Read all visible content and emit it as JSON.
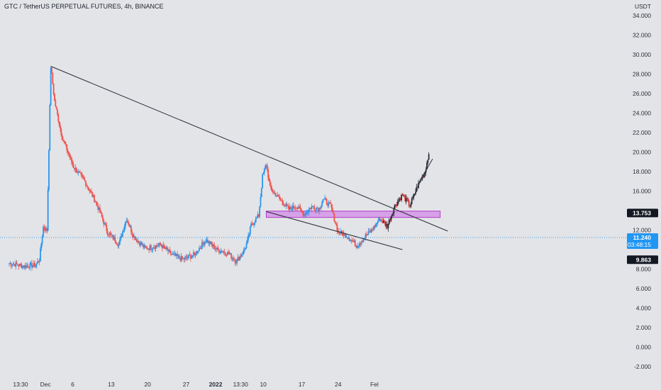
{
  "header": {
    "title": "GTC / TetherUS PERPETUAL FUTURES, 4h, BINANCE"
  },
  "price_axis": {
    "unit": "USDT",
    "ticks": [
      "34.000",
      "32.000",
      "30.000",
      "28.000",
      "26.000",
      "24.000",
      "22.000",
      "20.000",
      "18.000",
      "16.000",
      "12.000",
      "8.000",
      "6.000",
      "4.000",
      "2.000",
      "0.000",
      "-2.000"
    ]
  },
  "time_axis": {
    "ticks": [
      "13:30",
      "Dec",
      "6",
      "13",
      "20",
      "27",
      "2022",
      "13:30",
      "10",
      "17",
      "24",
      "Fel"
    ]
  },
  "price_tags": {
    "zone": "13.753",
    "last_price": "11.240",
    "countdown": "03:48:15",
    "low": "9.863"
  },
  "colors": {
    "bull": "#2d95ec",
    "bear": "#ef5350",
    "zone_fill": "#d6a1e8",
    "zone_border": "#b13cc7",
    "trendline": "#2a2e39",
    "last_price_line": "#2196f3",
    "background": "#e3e4e7",
    "late_candle_dark": "#2a2e39",
    "late_candle_red": "#d32f2f"
  },
  "chart_data": {
    "type": "candlestick",
    "title": "GTC / TetherUS PERPETUAL FUTURES, 4h, BINANCE",
    "ylabel": "USDT",
    "ylim": [
      -2.5,
      35
    ],
    "x_tick_labels": [
      "13:30",
      "Dec",
      "6",
      "13",
      "20",
      "27",
      "2022",
      "13:30",
      "10",
      "17",
      "24",
      "Fel"
    ],
    "approx_path": [
      [
        -3,
        8.6
      ],
      [
        1,
        8.3
      ],
      [
        4,
        8.4
      ],
      [
        5,
        9.0
      ],
      [
        6,
        12.3
      ],
      [
        7,
        12.0
      ],
      [
        8,
        28.8
      ],
      [
        9,
        25.2
      ],
      [
        11,
        21.5
      ],
      [
        14,
        18.5
      ],
      [
        17,
        17.0
      ],
      [
        20,
        14.8
      ],
      [
        23,
        11.8
      ],
      [
        25,
        11.0
      ],
      [
        26,
        10.5
      ],
      [
        28,
        13.2
      ],
      [
        30,
        11.3
      ],
      [
        33,
        10.1
      ],
      [
        37,
        10.5
      ],
      [
        40,
        9.5
      ],
      [
        43,
        9.0
      ],
      [
        46,
        9.5
      ],
      [
        49,
        11.0
      ],
      [
        52,
        10.0
      ],
      [
        55,
        9.6
      ],
      [
        57,
        8.8
      ],
      [
        59,
        9.8
      ],
      [
        60,
        10.8
      ],
      [
        61,
        12.5
      ],
      [
        63,
        13.5
      ],
      [
        64,
        17.5
      ],
      [
        65,
        18.8
      ],
      [
        66,
        16.3
      ],
      [
        69,
        15.0
      ],
      [
        71,
        14.1
      ],
      [
        73,
        14.5
      ],
      [
        75,
        13.6
      ],
      [
        77,
        14.4
      ],
      [
        79,
        14.2
      ],
      [
        80,
        15.2
      ],
      [
        82,
        14.5
      ],
      [
        84,
        11.8
      ],
      [
        86,
        11.5
      ],
      [
        88,
        10.8
      ],
      [
        89,
        10.4
      ],
      [
        91,
        11.3
      ],
      [
        93,
        12.0
      ],
      [
        95,
        13.2
      ],
      [
        97,
        12.4
      ],
      [
        99,
        14.5
      ],
      [
        101,
        15.6
      ],
      [
        103,
        14.5
      ],
      [
        105,
        16.5
      ],
      [
        107,
        18.0
      ],
      [
        108,
        19.8
      ]
    ],
    "key_levels": {
      "all_time_high": 28.8,
      "resistance_zone": [
        13.3,
        13.95
      ],
      "zone_label": 13.753,
      "last_price": 11.24,
      "low_label": 9.863
    },
    "trendlines": [
      {
        "name": "upper",
        "from": [
          8,
          28.8
        ],
        "to": [
          113,
          11.9
        ]
      },
      {
        "name": "lower",
        "from": [
          65,
          13.9
        ],
        "to": [
          101,
          10.0
        ]
      },
      {
        "name": "recent",
        "from": [
          106,
          17.3
        ],
        "to": [
          109,
          19.3
        ]
      }
    ],
    "grid": false,
    "legend": "none"
  }
}
